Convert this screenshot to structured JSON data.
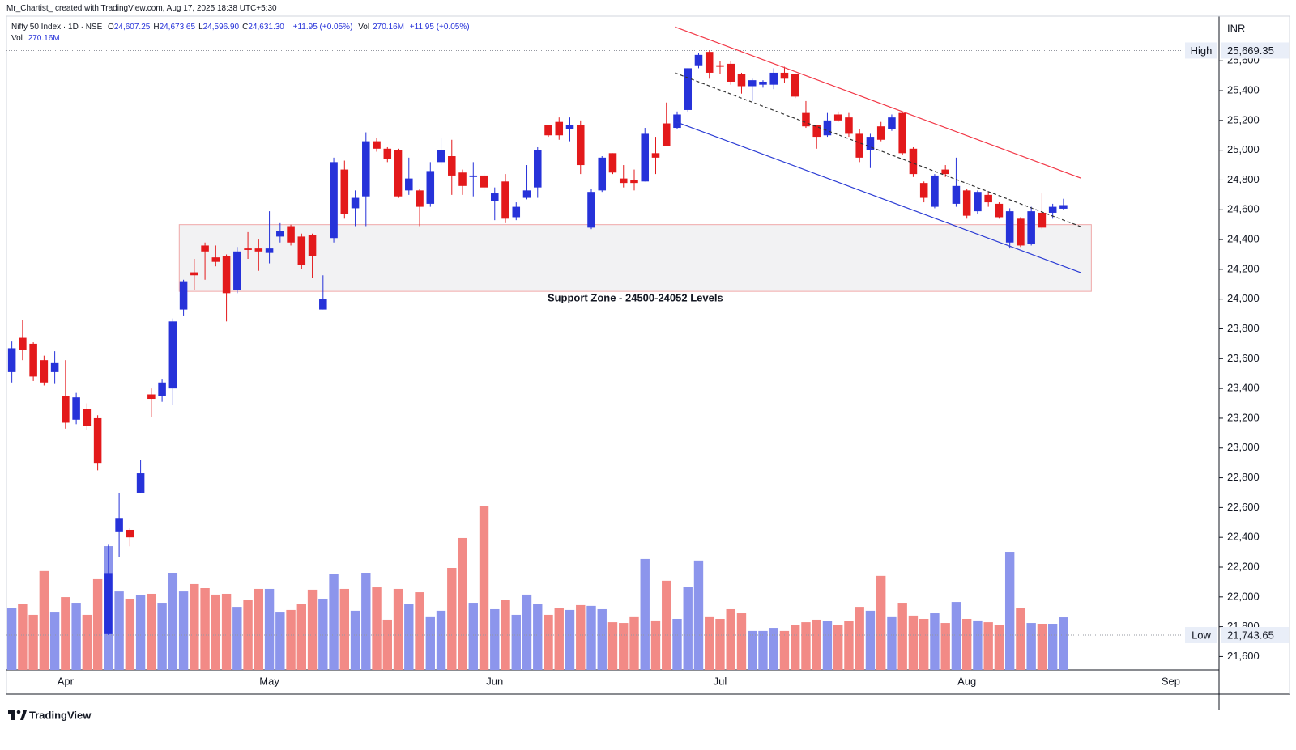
{
  "header": {
    "caption": "Mr_Chartist_ created with TradingView.com, Aug 17, 2025 18:38 UTC+5:30"
  },
  "chart_data": {
    "type": "candlestick",
    "symbol": "Nifty 50 Index · 1D · NSE",
    "legend": [
      {
        "key": "O",
        "value": "24,607.25"
      },
      {
        "key": "H",
        "value": "24,673.65"
      },
      {
        "key": "L",
        "value": "24,596.90"
      },
      {
        "key": "C",
        "value": "24,631.30"
      }
    ],
    "change": "+11.95 (+0.05%)",
    "volume_key": "Vol",
    "volume_value": "270.16M",
    "volume_change": "+11.95 (+0.05%)",
    "currency": "INR",
    "categories": [
      null,
      null,
      null,
      null,
      null,
      "Apr",
      null,
      null,
      null,
      null,
      null,
      null,
      null,
      null,
      null,
      null,
      null,
      null,
      null,
      null,
      null,
      null,
      null,
      null,
      "May",
      null,
      null,
      null,
      null,
      null,
      null,
      null,
      null,
      null,
      null,
      null,
      null,
      null,
      null,
      null,
      null,
      null,
      null,
      null,
      null,
      "Jun",
      null,
      null,
      null,
      null,
      null,
      null,
      null,
      null,
      null,
      null,
      null,
      null,
      null,
      null,
      null,
      null,
      null,
      null,
      null,
      null,
      "Jul",
      null,
      null,
      null,
      null,
      null,
      null,
      null,
      null,
      null,
      null,
      null,
      null,
      null,
      null,
      null,
      null,
      null,
      null,
      null,
      null,
      null,
      null,
      "Aug",
      null,
      null,
      null,
      null,
      null,
      null,
      null,
      null,
      null,
      null,
      null,
      null,
      null,
      null,
      null,
      null,
      null,
      null,
      "Sep",
      null,
      null,
      null,
      null
    ],
    "open": [
      23510,
      23740,
      23700,
      23590,
      23510,
      23350,
      23190,
      23260,
      23200,
      21750,
      22440,
      22450,
      22700,
      23360,
      23350,
      23400,
      23930,
      24180,
      24360,
      24280,
      24290,
      24060,
      24340,
      24340,
      24310,
      24420,
      24490,
      24420,
      24430,
      23930,
      24410,
      24870,
      24610,
      24690,
      25060,
      25010,
      25000,
      24730,
      24730,
      24640,
      24920,
      24960,
      24850,
      24820,
      24830,
      24660,
      24790,
      24550,
      24680,
      24750,
      25170,
      25190,
      25140,
      25170,
      24480,
      24730,
      24980,
      24810,
      24800,
      24790,
      24980,
      25180,
      25150,
      25270,
      25570,
      25660,
      25570,
      25580,
      25510,
      25430,
      25440,
      25440,
      25520,
      25510,
      25250,
      25170,
      25100,
      25240,
      25220,
      25110,
      25000,
      25160,
      25140,
      25250,
      25010,
      24780,
      24620,
      24870,
      24640,
      24730,
      24590,
      24700,
      24640,
      24380,
      24540,
      24370,
      24580,
      24580,
      24607.25,
      null,
      null,
      null,
      null,
      null,
      null,
      null,
      null,
      null,
      null,
      null,
      null,
      null,
      null
    ],
    "high": [
      23715,
      23860,
      23710,
      23620,
      23650,
      23590,
      23370,
      23300,
      23220,
      22350,
      22700,
      22460,
      22920,
      23400,
      23460,
      23870,
      24130,
      24270,
      24380,
      24360,
      24300,
      24350,
      24450,
      24400,
      24590,
      24510,
      24500,
      24440,
      24440,
      24160,
      24950,
      24930,
      24730,
      25120,
      25080,
      25020,
      25010,
      24950,
      24740,
      24920,
      25080,
      25070,
      24870,
      24920,
      24850,
      24750,
      24840,
      24650,
      24900,
      25020,
      25170,
      25220,
      25220,
      25200,
      24740,
      24960,
      24980,
      24900,
      24870,
      25150,
      25090,
      25320,
      25260,
      25550,
      25650,
      25669.35,
      25600,
      25600,
      25520,
      25480,
      25470,
      25550,
      25560,
      25510,
      25330,
      25170,
      25250,
      25260,
      25250,
      25140,
      25110,
      25190,
      25240,
      25260,
      25020,
      24790,
      24840,
      24900,
      24950,
      24740,
      24730,
      24720,
      24650,
      24610,
      24550,
      24620,
      24710,
      24640,
      24673.65,
      null,
      null,
      null,
      null,
      null,
      null,
      null,
      null,
      null,
      null,
      null,
      null,
      null,
      null
    ],
    "low": [
      23440,
      23590,
      23450,
      23420,
      23430,
      23130,
      23160,
      23120,
      22850,
      21743.65,
      22270,
      22340,
      22700,
      23210,
      23310,
      23290,
      23890,
      24060,
      24130,
      24220,
      23850,
      24040,
      24270,
      24190,
      24240,
      24380,
      24360,
      24200,
      24140,
      23930,
      24380,
      24540,
      24490,
      24490,
      24990,
      24920,
      24680,
      24700,
      24490,
      24620,
      24900,
      24700,
      24700,
      24690,
      24730,
      24530,
      24510,
      24530,
      24670,
      24680,
      25090,
      25070,
      25060,
      24840,
      24470,
      24720,
      24840,
      24750,
      24730,
      24790,
      24840,
      25030,
      25140,
      25260,
      25550,
      25480,
      25510,
      25440,
      25380,
      25330,
      25420,
      25410,
      25450,
      25350,
      25150,
      25010,
      25090,
      25190,
      25090,
      24920,
      24880,
      25060,
      25130,
      24970,
      24820,
      24650,
      24610,
      24820,
      24620,
      24540,
      24570,
      24620,
      24540,
      24340,
      24350,
      24360,
      24470,
      24540,
      24596.9,
      null,
      null,
      null,
      null,
      null,
      null,
      null,
      null,
      null,
      null,
      null,
      null,
      null,
      null
    ],
    "close": [
      23670,
      23660,
      23480,
      23440,
      23570,
      23170,
      23340,
      23150,
      22900,
      22160,
      22530,
      22400,
      22830,
      23330,
      23440,
      23850,
      24120,
      24160,
      24320,
      24250,
      24040,
      24320,
      24330,
      24320,
      24340,
      24460,
      24380,
      24230,
      24290,
      24000,
      24920,
      24570,
      24680,
      25060,
      25010,
      24940,
      24690,
      24810,
      24620,
      24860,
      25000,
      24830,
      24760,
      24830,
      24750,
      24710,
      24540,
      24620,
      24730,
      25000,
      25100,
      25100,
      25170,
      24900,
      24720,
      24950,
      24850,
      24780,
      24780,
      25110,
      24950,
      25030,
      25240,
      25550,
      25640,
      25520,
      25560,
      25460,
      25430,
      25470,
      25460,
      25520,
      25480,
      25360,
      25160,
      25090,
      25200,
      25200,
      25110,
      24950,
      25090,
      25070,
      25220,
      24980,
      24840,
      24680,
      24830,
      24840,
      24760,
      24560,
      24720,
      24650,
      24550,
      24590,
      24360,
      24590,
      24480,
      24620,
      24631.3,
      null,
      null,
      null,
      null,
      null,
      null,
      null,
      null,
      null,
      null,
      null,
      null,
      null,
      null
    ],
    "volume": [
      316,
      341,
      283,
      508,
      295,
      374,
      345,
      283,
      466,
      636,
      403,
      366,
      383,
      391,
      345,
      499,
      403,
      441,
      420,
      387,
      391,
      324,
      358,
      416,
      416,
      295,
      308,
      341,
      412,
      366,
      491,
      416,
      304,
      499,
      424,
      258,
      416,
      337,
      399,
      275,
      304,
      524,
      678,
      345,
      840,
      312,
      358,
      283,
      387,
      337,
      283,
      316,
      308,
      333,
      329,
      312,
      245,
      241,
      275,
      570,
      254,
      458,
      262,
      428,
      562,
      275,
      262,
      312,
      291,
      200,
      200,
      216,
      200,
      229,
      245,
      258,
      250,
      229,
      250,
      324,
      304,
      483,
      275,
      345,
      279,
      262,
      291,
      241,
      349,
      262,
      254,
      245,
      229,
      607,
      316,
      241,
      237,
      237,
      270.16,
      null,
      null,
      null,
      null,
      null,
      null,
      null,
      null,
      null,
      null,
      null,
      null,
      null,
      null
    ],
    "up_color": "#2632d9",
    "down_color": "#e3191b",
    "volume_up_color": "#8c95ec",
    "volume_down_color": "#f28a86",
    "ylim": [
      21510,
      25900
    ],
    "yticks": [
      {
        "value": 21600,
        "label": "21,600"
      },
      {
        "value": 21800,
        "label": "21,800"
      },
      {
        "value": 22000,
        "label": "22,000"
      },
      {
        "value": 22200,
        "label": "22,200"
      },
      {
        "value": 22400,
        "label": "22,400"
      },
      {
        "value": 22600,
        "label": "22,600"
      },
      {
        "value": 22800,
        "label": "22,800"
      },
      {
        "value": 23000,
        "label": "23,000"
      },
      {
        "value": 23200,
        "label": "23,200"
      },
      {
        "value": 23400,
        "label": "23,400"
      },
      {
        "value": 23600,
        "label": "23,600"
      },
      {
        "value": 23800,
        "label": "23,800"
      },
      {
        "value": 24000,
        "label": "24,000"
      },
      {
        "value": 24200,
        "label": "24,200"
      },
      {
        "value": 24400,
        "label": "24,400"
      },
      {
        "value": 24600,
        "label": "24,600"
      },
      {
        "value": 24800,
        "label": "24,800"
      },
      {
        "value": 25000,
        "label": "25,000"
      },
      {
        "value": 25200,
        "label": "25,200"
      },
      {
        "value": 25400,
        "label": "25,400"
      },
      {
        "value": 25600,
        "label": "25,600"
      }
    ],
    "grid": false,
    "markers": [
      {
        "label": "High",
        "value": 25669.35,
        "value_label": "25,669.35"
      },
      {
        "label": "Low",
        "value": 21743.65,
        "value_label": "21,743.65"
      }
    ],
    "zone": {
      "label": "Support Zone - 24500-24052 Levels",
      "y": [
        24500,
        24052
      ],
      "x": [
        15.6,
        100.6
      ]
    },
    "trendlines": [
      {
        "color": "#f23645",
        "dashed": false,
        "x": [
          61.8,
          99.6
        ],
        "y": [
          25828,
          24813
        ]
      },
      {
        "color": "#2a3bd4",
        "dashed": false,
        "x": [
          61.8,
          99.6
        ],
        "y": [
          25193,
          24178
        ]
      },
      {
        "color": "#333333",
        "dashed": true,
        "x": [
          61.8,
          99.6
        ],
        "y": [
          25519,
          24487
        ]
      }
    ]
  },
  "footer": {
    "brand": "TradingView"
  }
}
